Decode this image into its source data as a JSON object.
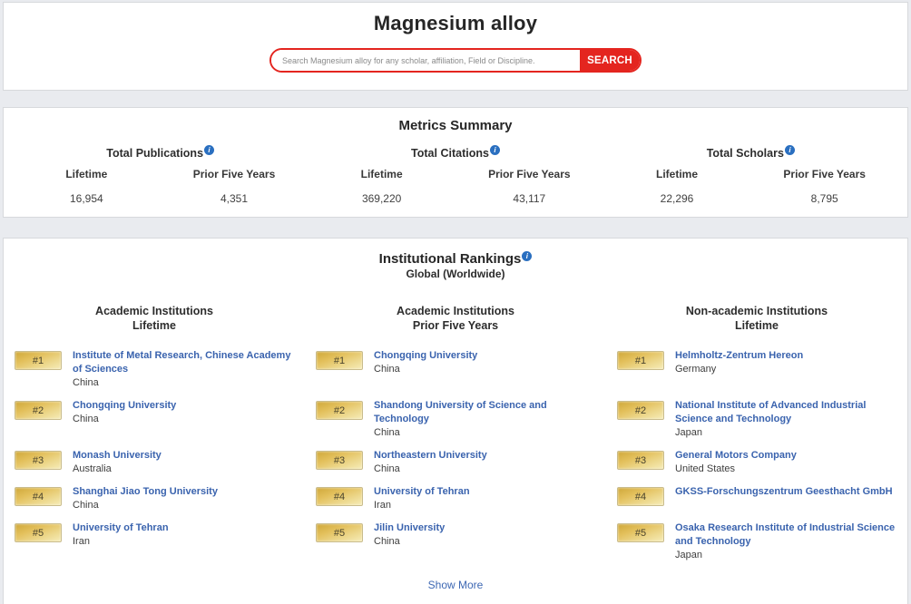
{
  "page": {
    "title": "Magnesium alloy"
  },
  "search": {
    "placeholder": "Search Magnesium alloy for any scholar, affiliation, Field or Discipline.",
    "button_label": "SEARCH"
  },
  "icons": {
    "info": "i"
  },
  "colors": {
    "accent_red": "#e4251f",
    "link_blue": "#3a63ae",
    "info_blue": "#2a6fc0",
    "badge_gold": "#e3c05c",
    "page_background": "#e9ebef"
  },
  "metrics": {
    "title": "Metrics Summary",
    "groups": [
      {
        "label": "Total Publications",
        "cols": [
          {
            "label": "Lifetime",
            "value": "16,954"
          },
          {
            "label": "Prior Five Years",
            "value": "4,351"
          }
        ]
      },
      {
        "label": "Total Citations",
        "cols": [
          {
            "label": "Lifetime",
            "value": "369,220"
          },
          {
            "label": "Prior Five Years",
            "value": "43,117"
          }
        ]
      },
      {
        "label": "Total Scholars",
        "cols": [
          {
            "label": "Lifetime",
            "value": "22,296"
          },
          {
            "label": "Prior Five Years",
            "value": "8,795"
          }
        ]
      }
    ]
  },
  "rankings": {
    "title": "Institutional Rankings",
    "subtitle": "Global (Worldwide)",
    "show_more": "Show More",
    "columns": [
      {
        "header_line1": "Academic Institutions",
        "header_line2": "Lifetime",
        "items": [
          {
            "rank": "#1",
            "name": "Institute of Metal Research, Chinese Academy of Sciences",
            "country": "China"
          },
          {
            "rank": "#2",
            "name": "Chongqing University",
            "country": "China"
          },
          {
            "rank": "#3",
            "name": "Monash University",
            "country": "Australia"
          },
          {
            "rank": "#4",
            "name": "Shanghai Jiao Tong University",
            "country": "China"
          },
          {
            "rank": "#5",
            "name": "University of Tehran",
            "country": "Iran"
          }
        ]
      },
      {
        "header_line1": "Academic Institutions",
        "header_line2": "Prior Five Years",
        "items": [
          {
            "rank": "#1",
            "name": "Chongqing University",
            "country": "China"
          },
          {
            "rank": "#2",
            "name": "Shandong University of Science and Technology",
            "country": "China"
          },
          {
            "rank": "#3",
            "name": "Northeastern University",
            "country": "China"
          },
          {
            "rank": "#4",
            "name": "University of Tehran",
            "country": "Iran"
          },
          {
            "rank": "#5",
            "name": "Jilin University",
            "country": "China"
          }
        ]
      },
      {
        "header_line1": "Non-academic Institutions",
        "header_line2": "Lifetime",
        "items": [
          {
            "rank": "#1",
            "name": "Helmholtz-Zentrum Hereon",
            "country": "Germany"
          },
          {
            "rank": "#2",
            "name": "National Institute of Advanced Industrial Science and Technology",
            "country": "Japan"
          },
          {
            "rank": "#3",
            "name": "General Motors Company",
            "country": "United States"
          },
          {
            "rank": "#4",
            "name": "GKSS-Forschungszentrum Geesthacht GmbH",
            "country": ""
          },
          {
            "rank": "#5",
            "name": "Osaka Research Institute of Industrial Science and Technology",
            "country": "Japan"
          }
        ]
      }
    ]
  }
}
